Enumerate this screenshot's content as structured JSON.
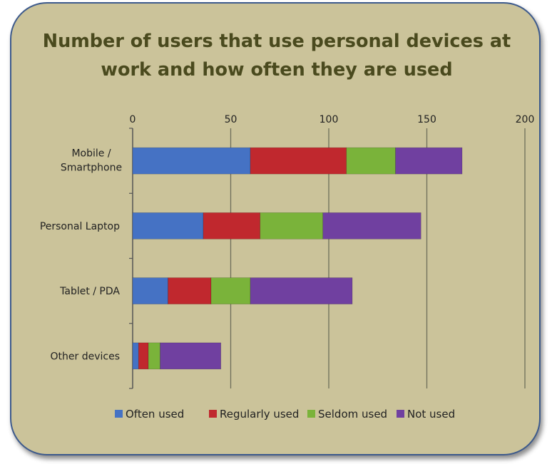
{
  "chart_data": {
    "type": "bar",
    "orientation": "horizontal",
    "stacked": true,
    "title": "Number of users that use personal devices at work and how often they are used",
    "categories": [
      "Mobile / Smartphone",
      "Personal Laptop",
      "Tablet / PDA",
      "Other devices"
    ],
    "series": [
      {
        "name": "Often used",
        "color": "#4572c4",
        "values": [
          60,
          36,
          18,
          3
        ]
      },
      {
        "name": "Regularly used",
        "color": "#c0282e",
        "values": [
          49,
          29,
          22,
          5
        ]
      },
      {
        "name": "Seldom used",
        "color": "#7ab33a",
        "values": [
          25,
          32,
          20,
          6
        ]
      },
      {
        "name": "Not used",
        "color": "#7040a0",
        "values": [
          34,
          50,
          52,
          31
        ]
      }
    ],
    "xlim": [
      0,
      200
    ],
    "xticks": [
      0,
      50,
      100,
      150,
      200
    ],
    "x_axis_position": "top",
    "grid": true,
    "legend_position": "bottom"
  }
}
